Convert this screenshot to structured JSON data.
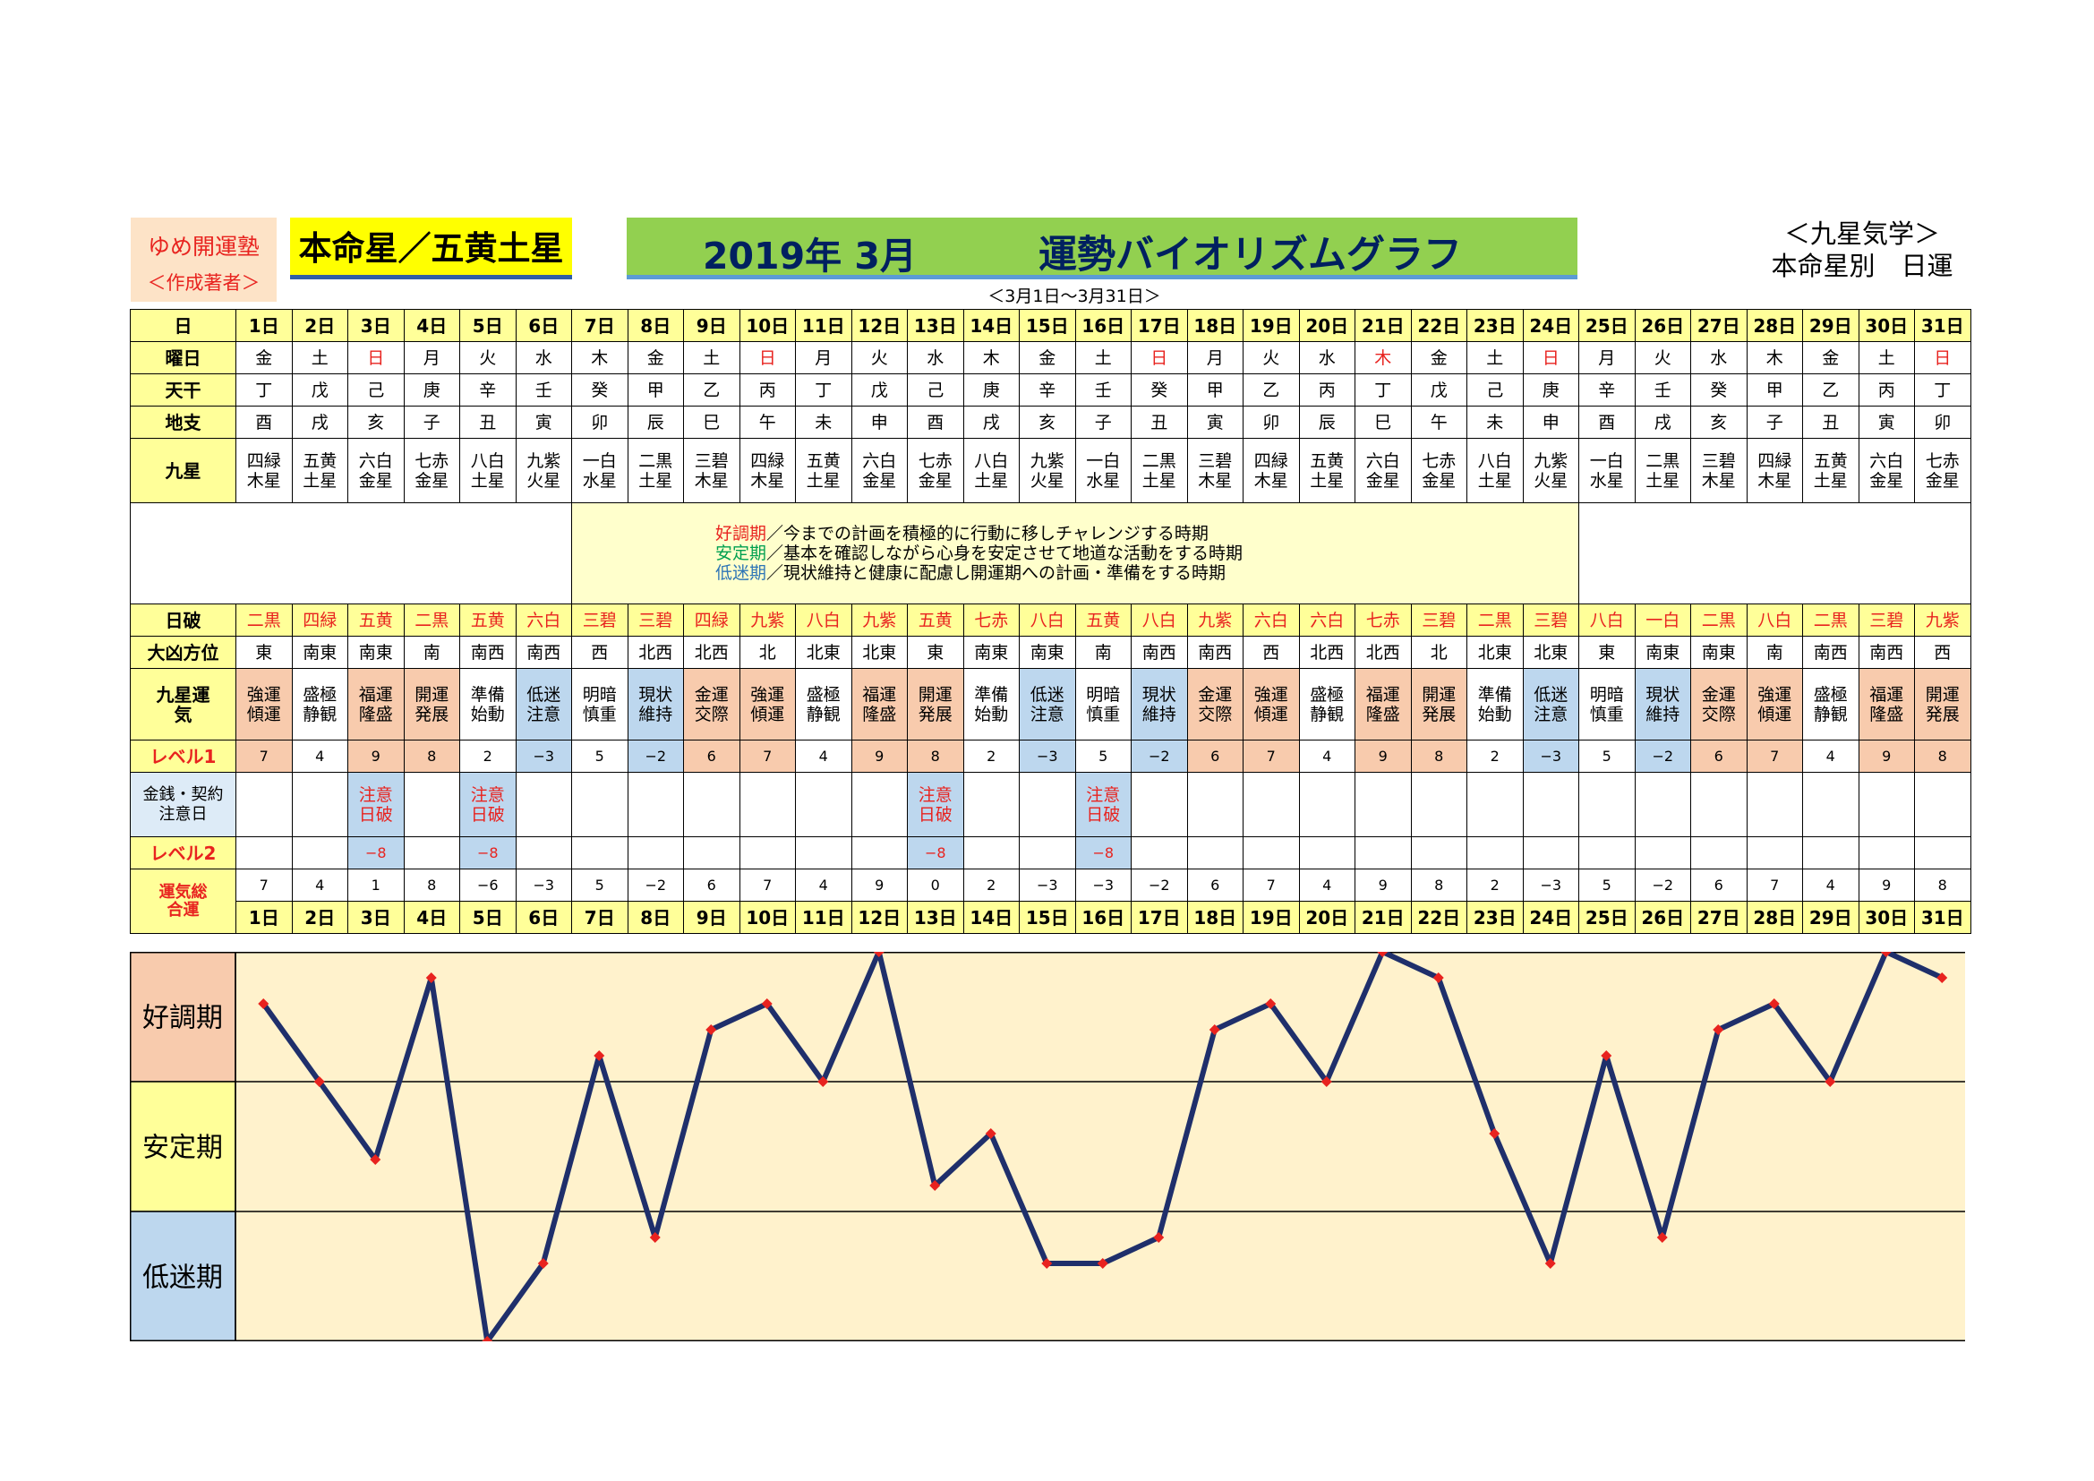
{
  "header": {
    "brand_name": "ゆめ開運塾",
    "brand_sub": "＜作成著者＞",
    "honmei": "本命星／五黄土星",
    "year_month": "2019年 3月",
    "title": "運勢バイオリズムグラフ",
    "range": "＜3月1日～3月31日＞",
    "kigaku_line1": "＜九星気学＞",
    "kigaku_line2": "本命星別　日運"
  },
  "row_labels": {
    "day": "日",
    "weekday": "曜日",
    "tenkan": "天干",
    "chishi": "地支",
    "kyusei": "九星",
    "nichiha": "日破",
    "daikyo": "大凶方位",
    "kyusei_unki": "九星運気",
    "level1": "レベル1",
    "kinsen": "金銭・契約注意日",
    "level2": "レベル2",
    "sogo": "運気総合運"
  },
  "legend": {
    "good_term": "好調期",
    "good_text": "／今までの計画を積極的に行動に移しチャレンジする時期",
    "stable_term": "安定期",
    "stable_text": "／基本を確認しながら心身を安定させて地道な活動をする時期",
    "low_term": "低迷期",
    "low_text": "／現状維持と健康に配慮し開運期への計画・準備をする時期"
  },
  "days": [
    "1日",
    "2日",
    "3日",
    "4日",
    "5日",
    "6日",
    "7日",
    "8日",
    "9日",
    "10日",
    "11日",
    "12日",
    "13日",
    "14日",
    "15日",
    "16日",
    "17日",
    "18日",
    "19日",
    "20日",
    "21日",
    "22日",
    "23日",
    "24日",
    "25日",
    "26日",
    "27日",
    "28日",
    "29日",
    "30日",
    "31日"
  ],
  "weekday": [
    "金",
    "土",
    "日",
    "月",
    "火",
    "水",
    "木",
    "金",
    "土",
    "日",
    "月",
    "火",
    "水",
    "木",
    "金",
    "土",
    "日",
    "月",
    "火",
    "水",
    "木",
    "金",
    "土",
    "日",
    "月",
    "火",
    "水",
    "木",
    "金",
    "土",
    "日"
  ],
  "weekday_red": [
    2,
    9,
    16,
    20,
    23,
    30
  ],
  "tenkan": [
    "丁",
    "戊",
    "己",
    "庚",
    "辛",
    "壬",
    "癸",
    "甲",
    "乙",
    "丙",
    "丁",
    "戊",
    "己",
    "庚",
    "辛",
    "壬",
    "癸",
    "甲",
    "乙",
    "丙",
    "丁",
    "戊",
    "己",
    "庚",
    "辛",
    "壬",
    "癸",
    "甲",
    "乙",
    "丙",
    "丁"
  ],
  "chishi": [
    "酉",
    "戌",
    "亥",
    "子",
    "丑",
    "寅",
    "卯",
    "辰",
    "巳",
    "午",
    "未",
    "申",
    "酉",
    "戌",
    "亥",
    "子",
    "丑",
    "寅",
    "卯",
    "辰",
    "巳",
    "午",
    "未",
    "申",
    "酉",
    "戌",
    "亥",
    "子",
    "丑",
    "寅",
    "卯"
  ],
  "kyusei": [
    [
      "四緑",
      "木星"
    ],
    [
      "五黄",
      "土星"
    ],
    [
      "六白",
      "金星"
    ],
    [
      "七赤",
      "金星"
    ],
    [
      "八白",
      "土星"
    ],
    [
      "九紫",
      "火星"
    ],
    [
      "一白",
      "水星"
    ],
    [
      "二黒",
      "土星"
    ],
    [
      "三碧",
      "木星"
    ],
    [
      "四緑",
      "木星"
    ],
    [
      "五黄",
      "土星"
    ],
    [
      "六白",
      "金星"
    ],
    [
      "七赤",
      "金星"
    ],
    [
      "八白",
      "土星"
    ],
    [
      "九紫",
      "火星"
    ],
    [
      "一白",
      "水星"
    ],
    [
      "二黒",
      "土星"
    ],
    [
      "三碧",
      "木星"
    ],
    [
      "四緑",
      "木星"
    ],
    [
      "五黄",
      "土星"
    ],
    [
      "六白",
      "金星"
    ],
    [
      "七赤",
      "金星"
    ],
    [
      "八白",
      "土星"
    ],
    [
      "九紫",
      "火星"
    ],
    [
      "一白",
      "水星"
    ],
    [
      "二黒",
      "土星"
    ],
    [
      "三碧",
      "木星"
    ],
    [
      "四緑",
      "木星"
    ],
    [
      "五黄",
      "土星"
    ],
    [
      "六白",
      "金星"
    ],
    [
      "七赤",
      "金星"
    ]
  ],
  "nichiha": [
    "二黒",
    "四緑",
    "五黄",
    "二黒",
    "五黄",
    "六白",
    "三碧",
    "三碧",
    "四緑",
    "九紫",
    "八白",
    "九紫",
    "五黄",
    "七赤",
    "八白",
    "五黄",
    "八白",
    "九紫",
    "六白",
    "六白",
    "七赤",
    "三碧",
    "二黒",
    "三碧",
    "八白",
    "一白",
    "二黒",
    "八白",
    "二黒",
    "三碧",
    "九紫"
  ],
  "daikyo": [
    "東",
    "南東",
    "南東",
    "南",
    "南西",
    "南西",
    "西",
    "北西",
    "北西",
    "北",
    "北東",
    "北東",
    "東",
    "南東",
    "南東",
    "南",
    "南西",
    "南西",
    "西",
    "北西",
    "北西",
    "北",
    "北東",
    "北東",
    "東",
    "南東",
    "南東",
    "南",
    "南西",
    "南西",
    "西"
  ],
  "unki": [
    [
      "強運",
      "傾運"
    ],
    [
      "盛極",
      "静観"
    ],
    [
      "福運",
      "隆盛"
    ],
    [
      "開運",
      "発展"
    ],
    [
      "準備",
      "始動"
    ],
    [
      "低迷",
      "注意"
    ],
    [
      "明暗",
      "慎重"
    ],
    [
      "現状",
      "維持"
    ],
    [
      "金運",
      "交際"
    ],
    [
      "強運",
      "傾運"
    ],
    [
      "盛極",
      "静観"
    ],
    [
      "福運",
      "隆盛"
    ],
    [
      "開運",
      "発展"
    ],
    [
      "準備",
      "始動"
    ],
    [
      "低迷",
      "注意"
    ],
    [
      "明暗",
      "慎重"
    ],
    [
      "現状",
      "維持"
    ],
    [
      "金運",
      "交際"
    ],
    [
      "強運",
      "傾運"
    ],
    [
      "盛極",
      "静観"
    ],
    [
      "福運",
      "隆盛"
    ],
    [
      "開運",
      "発展"
    ],
    [
      "準備",
      "始動"
    ],
    [
      "低迷",
      "注意"
    ],
    [
      "明暗",
      "慎重"
    ],
    [
      "現状",
      "維持"
    ],
    [
      "金運",
      "交際"
    ],
    [
      "強運",
      "傾運"
    ],
    [
      "盛極",
      "静観"
    ],
    [
      "福運",
      "隆盛"
    ],
    [
      "開運",
      "発展"
    ]
  ],
  "level1": [
    "7",
    "4",
    "9",
    "8",
    "2",
    "−3",
    "5",
    "−2",
    "6",
    "7",
    "4",
    "9",
    "8",
    "2",
    "−3",
    "5",
    "−2",
    "6",
    "7",
    "4",
    "9",
    "8",
    "2",
    "−3",
    "5",
    "−2",
    "6",
    "7",
    "4",
    "9",
    "8"
  ],
  "kinsen_text": [
    "注意",
    "日破"
  ],
  "kinsen_days": [
    2,
    4,
    12,
    15
  ],
  "level2_value": "−8",
  "sogo": [
    "7",
    "4",
    "1",
    "8",
    "−6",
    "−3",
    "5",
    "−2",
    "6",
    "7",
    "4",
    "9",
    "0",
    "2",
    "−3",
    "−3",
    "−2",
    "6",
    "7",
    "4",
    "9",
    "8",
    "2",
    "−3",
    "5",
    "−2",
    "6",
    "7",
    "4",
    "9",
    "8"
  ],
  "chart_data": {
    "type": "line",
    "categories": [
      "1日",
      "2日",
      "3日",
      "4日",
      "5日",
      "6日",
      "7日",
      "8日",
      "9日",
      "10日",
      "11日",
      "12日",
      "13日",
      "14日",
      "15日",
      "16日",
      "17日",
      "18日",
      "19日",
      "20日",
      "21日",
      "22日",
      "23日",
      "24日",
      "25日",
      "26日",
      "27日",
      "28日",
      "29日",
      "30日",
      "31日"
    ],
    "series": [
      {
        "values": [
          7,
          4,
          1,
          8,
          -6,
          -3,
          5,
          -2,
          6,
          7,
          4,
          9,
          0,
          2,
          -3,
          -3,
          -2,
          6,
          7,
          4,
          9,
          8,
          2,
          -3,
          5,
          -2,
          6,
          7,
          4,
          9,
          8
        ]
      }
    ],
    "ylim": [
      -6,
      9
    ],
    "bands": [
      {
        "label": "好調期",
        "color": "#f8cbad"
      },
      {
        "label": "安定期",
        "color": "#ffff99"
      },
      {
        "label": "低迷期",
        "color": "#bdd7ee"
      }
    ],
    "line_color": "#1f2f6b",
    "marker_color": "#e8231f",
    "plot_bg": "#fff2cc"
  }
}
